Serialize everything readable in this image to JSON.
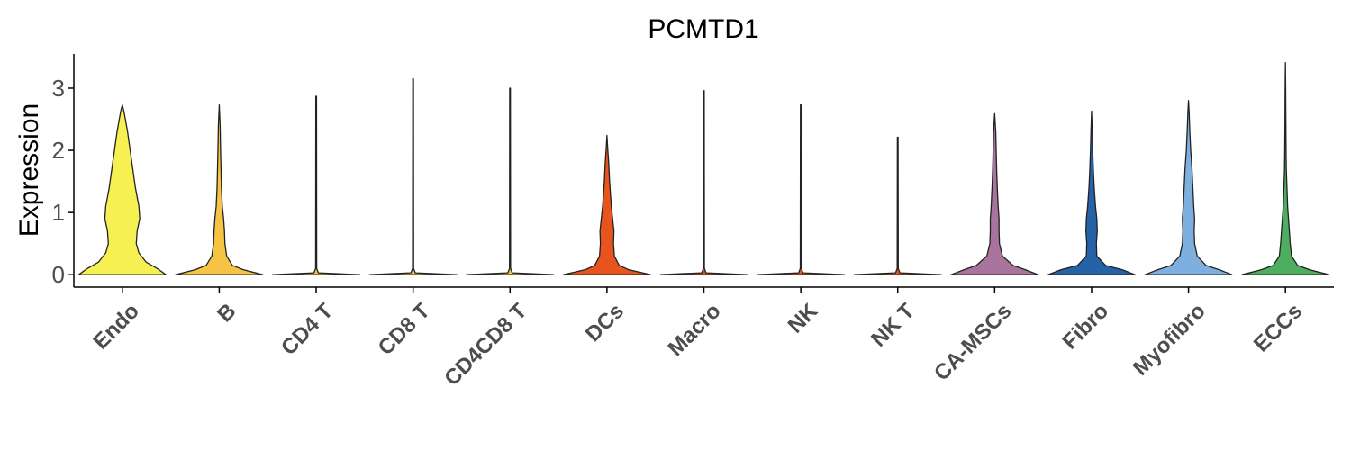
{
  "chart_data": {
    "type": "violin",
    "title": "PCMTD1",
    "xlabel": "",
    "ylabel": "Expression",
    "ylim": [
      -0.2,
      3.55
    ],
    "yticks": [
      0,
      1,
      2,
      3
    ],
    "grid": false,
    "legend": "none",
    "categories": [
      "Endo",
      "B",
      "CD4 T",
      "CD8 T",
      "CD4CD8 T",
      "DCs",
      "Macro",
      "NK",
      "NK T",
      "CA-MSCs",
      "Fibro",
      "Myofibro",
      "ECCs"
    ],
    "series": [
      {
        "category": "Endo",
        "color": "#F7F052",
        "max": 2.73,
        "density": [
          [
            0,
            1
          ],
          [
            0.1,
            0.8
          ],
          [
            0.2,
            0.55
          ],
          [
            0.35,
            0.38
          ],
          [
            0.5,
            0.32
          ],
          [
            0.7,
            0.34
          ],
          [
            0.9,
            0.4
          ],
          [
            1.1,
            0.38
          ],
          [
            1.4,
            0.3
          ],
          [
            1.7,
            0.24
          ],
          [
            2.0,
            0.18
          ],
          [
            2.3,
            0.12
          ],
          [
            2.5,
            0.07
          ],
          [
            2.65,
            0.03
          ],
          [
            2.73,
            0
          ]
        ]
      },
      {
        "category": "B",
        "color": "#F6C444",
        "max": 2.73,
        "density": [
          [
            0,
            1
          ],
          [
            0.08,
            0.55
          ],
          [
            0.15,
            0.3
          ],
          [
            0.3,
            0.17
          ],
          [
            0.5,
            0.13
          ],
          [
            0.7,
            0.12
          ],
          [
            0.9,
            0.1
          ],
          [
            1.1,
            0.07
          ],
          [
            1.4,
            0.05
          ],
          [
            1.7,
            0.04
          ],
          [
            2.0,
            0.03
          ],
          [
            2.4,
            0.02
          ],
          [
            2.73,
            0
          ]
        ]
      },
      {
        "category": "CD4 T",
        "color": "#F6C444",
        "max": 2.87,
        "density": [
          [
            0,
            1
          ],
          [
            0.03,
            0.05
          ],
          [
            0.1,
            0.012
          ],
          [
            2.87,
            0.008
          ]
        ]
      },
      {
        "category": "CD8 T",
        "color": "#F6C444",
        "max": 3.15,
        "density": [
          [
            0,
            1
          ],
          [
            0.03,
            0.05
          ],
          [
            0.1,
            0.012
          ],
          [
            3.15,
            0.008
          ]
        ]
      },
      {
        "category": "CD4CD8 T",
        "color": "#F6C444",
        "max": 3.0,
        "density": [
          [
            0,
            1
          ],
          [
            0.03,
            0.05
          ],
          [
            0.1,
            0.012
          ],
          [
            3.0,
            0.008
          ]
        ]
      },
      {
        "category": "DCs",
        "color": "#E8541E",
        "max": 2.24,
        "density": [
          [
            0,
            1
          ],
          [
            0.08,
            0.5
          ],
          [
            0.15,
            0.28
          ],
          [
            0.3,
            0.17
          ],
          [
            0.5,
            0.15
          ],
          [
            0.7,
            0.16
          ],
          [
            0.9,
            0.13
          ],
          [
            1.1,
            0.1
          ],
          [
            1.3,
            0.08
          ],
          [
            1.5,
            0.06
          ],
          [
            1.8,
            0.04
          ],
          [
            2.0,
            0.02
          ],
          [
            2.24,
            0
          ]
        ]
      },
      {
        "category": "Macro",
        "color": "#E8541E",
        "max": 2.96,
        "density": [
          [
            0,
            1
          ],
          [
            0.03,
            0.05
          ],
          [
            0.1,
            0.012
          ],
          [
            2.96,
            0.008
          ]
        ]
      },
      {
        "category": "NK",
        "color": "#E8541E",
        "max": 2.73,
        "density": [
          [
            0,
            1
          ],
          [
            0.03,
            0.05
          ],
          [
            0.1,
            0.012
          ],
          [
            2.73,
            0.008
          ]
        ]
      },
      {
        "category": "NK T",
        "color": "#E8541E",
        "max": 2.21,
        "density": [
          [
            0,
            1
          ],
          [
            0.03,
            0.05
          ],
          [
            0.1,
            0.012
          ],
          [
            2.21,
            0.008
          ]
        ]
      },
      {
        "category": "CA-MSCs",
        "color": "#A8749E",
        "max": 2.59,
        "density": [
          [
            0,
            1
          ],
          [
            0.08,
            0.7
          ],
          [
            0.15,
            0.42
          ],
          [
            0.3,
            0.18
          ],
          [
            0.5,
            0.11
          ],
          [
            0.7,
            0.1
          ],
          [
            0.9,
            0.1
          ],
          [
            1.1,
            0.08
          ],
          [
            1.4,
            0.06
          ],
          [
            1.7,
            0.045
          ],
          [
            2.0,
            0.035
          ],
          [
            2.3,
            0.025
          ],
          [
            2.59,
            0
          ]
        ]
      },
      {
        "category": "Fibro",
        "color": "#2562A8",
        "max": 2.63,
        "density": [
          [
            0,
            1
          ],
          [
            0.08,
            0.7
          ],
          [
            0.15,
            0.32
          ],
          [
            0.3,
            0.12
          ],
          [
            0.5,
            0.11
          ],
          [
            0.7,
            0.13
          ],
          [
            0.9,
            0.12
          ],
          [
            1.1,
            0.09
          ],
          [
            1.4,
            0.06
          ],
          [
            1.7,
            0.04
          ],
          [
            2.0,
            0.025
          ],
          [
            2.3,
            0.015
          ],
          [
            2.63,
            0
          ]
        ]
      },
      {
        "category": "Myofibro",
        "color": "#7EB0DF",
        "max": 2.8,
        "density": [
          [
            0,
            1
          ],
          [
            0.08,
            0.7
          ],
          [
            0.15,
            0.4
          ],
          [
            0.3,
            0.2
          ],
          [
            0.5,
            0.14
          ],
          [
            0.7,
            0.13
          ],
          [
            0.9,
            0.14
          ],
          [
            1.1,
            0.12
          ],
          [
            1.4,
            0.1
          ],
          [
            1.7,
            0.08
          ],
          [
            2.0,
            0.05
          ],
          [
            2.3,
            0.03
          ],
          [
            2.6,
            0.015
          ],
          [
            2.8,
            0
          ]
        ]
      },
      {
        "category": "ECCs",
        "color": "#4DAE60",
        "max": 3.41,
        "density": [
          [
            0,
            1
          ],
          [
            0.08,
            0.55
          ],
          [
            0.15,
            0.28
          ],
          [
            0.3,
            0.14
          ],
          [
            0.5,
            0.11
          ],
          [
            0.7,
            0.09
          ],
          [
            0.9,
            0.07
          ],
          [
            1.1,
            0.05
          ],
          [
            1.4,
            0.035
          ],
          [
            1.7,
            0.02
          ],
          [
            2.0,
            0.015
          ],
          [
            2.5,
            0.01
          ],
          [
            3.0,
            0.006
          ],
          [
            3.41,
            0
          ]
        ]
      }
    ]
  }
}
